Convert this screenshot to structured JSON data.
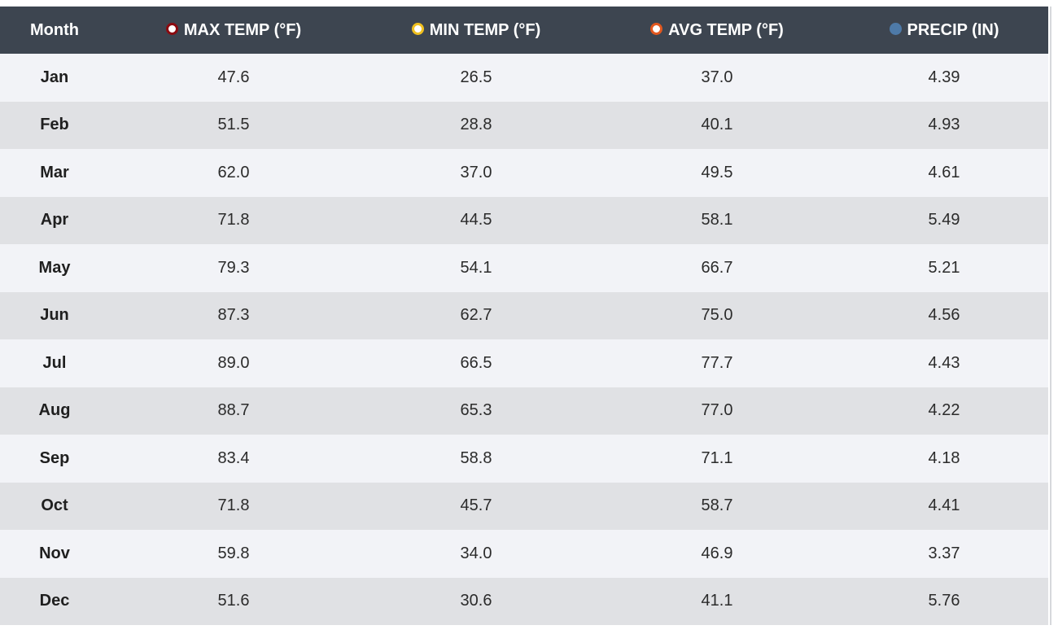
{
  "table": {
    "columns": [
      {
        "label": "Month",
        "marker": null
      },
      {
        "label": "MAX TEMP (°F)",
        "marker": {
          "color": "#8b0a10",
          "style": "ring"
        }
      },
      {
        "label": "MIN TEMP (°F)",
        "marker": {
          "color": "#f0c020",
          "style": "ring"
        }
      },
      {
        "label": "AVG TEMP (°F)",
        "marker": {
          "color": "#e2581f",
          "style": "ring"
        }
      },
      {
        "label": "PRECIP (IN)",
        "marker": {
          "color": "#4e7aa8",
          "style": "solid"
        }
      }
    ],
    "rows": [
      [
        "Jan",
        "47.6",
        "26.5",
        "37.0",
        "4.39"
      ],
      [
        "Feb",
        "51.5",
        "28.8",
        "40.1",
        "4.93"
      ],
      [
        "Mar",
        "62.0",
        "37.0",
        "49.5",
        "4.61"
      ],
      [
        "Apr",
        "71.8",
        "44.5",
        "58.1",
        "5.49"
      ],
      [
        "May",
        "79.3",
        "54.1",
        "66.7",
        "5.21"
      ],
      [
        "Jun",
        "87.3",
        "62.7",
        "75.0",
        "4.56"
      ],
      [
        "Jul",
        "89.0",
        "66.5",
        "77.7",
        "4.43"
      ],
      [
        "Aug",
        "88.7",
        "65.3",
        "77.0",
        "4.22"
      ],
      [
        "Sep",
        "83.4",
        "58.8",
        "71.1",
        "4.18"
      ],
      [
        "Oct",
        "71.8",
        "45.7",
        "58.7",
        "4.41"
      ],
      [
        "Nov",
        "59.8",
        "34.0",
        "46.9",
        "3.37"
      ],
      [
        "Dec",
        "51.6",
        "30.6",
        "41.1",
        "5.76"
      ]
    ]
  },
  "colors": {
    "header_bg": "#3d4550",
    "row_light": "#f2f3f7",
    "row_dark": "#e0e1e4"
  }
}
